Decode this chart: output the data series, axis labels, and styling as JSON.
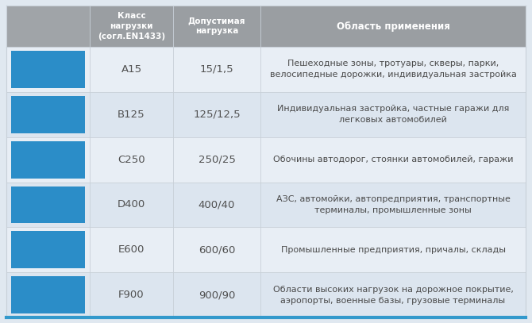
{
  "header": [
    "Класс\nнагрузки\n(согл.EN1433)",
    "Допустимая\nнагрузка",
    "Область применения"
  ],
  "rows": [
    {
      "class": "A15",
      "load": "15/1,5",
      "description": "Пешеходные зоны, тротуары, скверы, парки,\nвелосипедные дорожки, индивидуальная застройка"
    },
    {
      "class": "B125",
      "load": "125/12,5",
      "description": "Индивидуальная застройка, частные гаражи для\nлегковых автомобилей"
    },
    {
      "class": "C250",
      "load": "250/25",
      "description": "Обочины автодорог, стоянки автомобилей, гаражи"
    },
    {
      "class": "D400",
      "load": "400/40",
      "description": "АЗС, автомойки, автопредприятия, транспортные\nтерминалы, промышленные зоны"
    },
    {
      "class": "E600",
      "load": "600/60",
      "description": "Промышленные предприятия, причалы, склады"
    },
    {
      "class": "F900",
      "load": "900/90",
      "description": "Области высоких нагрузок на дорожное покрытие,\nаэропорты, военные базы, грузовые терминалы"
    }
  ],
  "header_bg_icon": "#a0a4a8",
  "header_bg_main": "#9a9ea2",
  "header_text_color": "#ffffff",
  "row_bg_light": "#e8eef5",
  "row_bg_lighter": "#dce5ef",
  "icon_bg": "#2b8dc8",
  "border_color": "#c8d0d8",
  "text_color": "#4a4a4a",
  "class_text_color": "#505050",
  "fig_width": 6.7,
  "fig_height": 4.07,
  "bottom_border_color": "#3399cc",
  "outer_bg": "#e0e8f0"
}
